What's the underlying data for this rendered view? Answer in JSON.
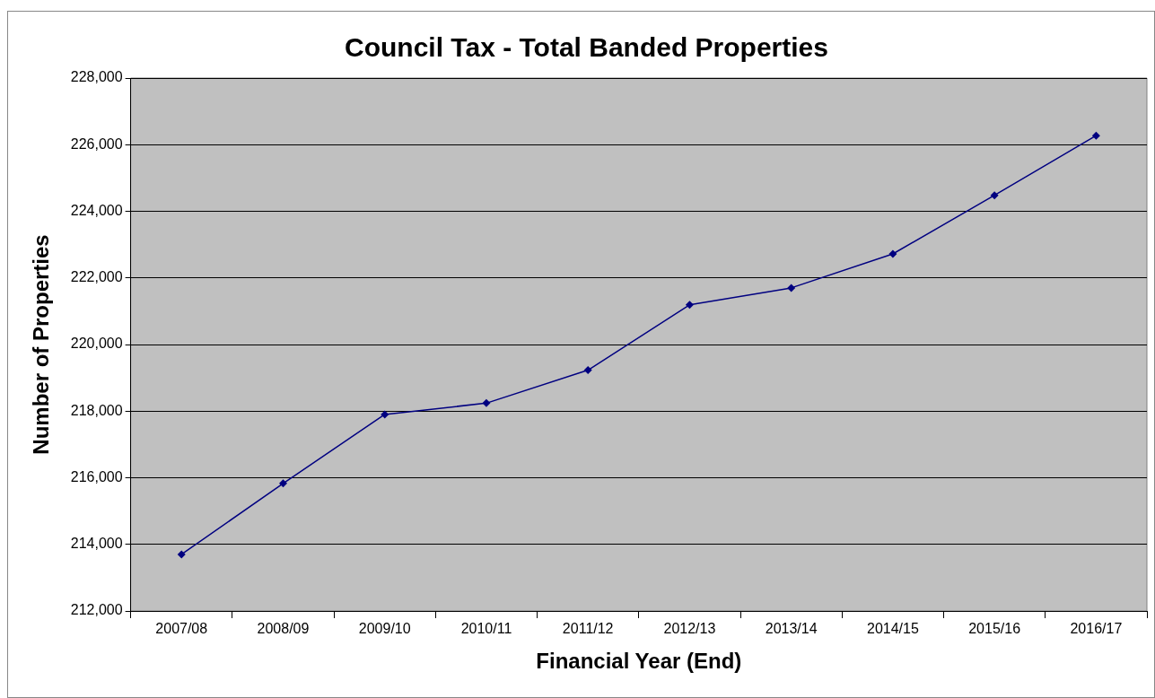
{
  "chart_data": {
    "type": "line",
    "title": "Council Tax - Total Banded Properties",
    "xlabel": "Financial Year (End)",
    "ylabel": "Number of Properties",
    "categories": [
      "2007/08",
      "2008/09",
      "2009/10",
      "2010/11",
      "2011/12",
      "2012/13",
      "2013/14",
      "2014/15",
      "2015/16",
      "2016/17"
    ],
    "series": [
      {
        "color": "#000080",
        "values": [
          213700,
          215830,
          217900,
          218240,
          219230,
          221190,
          221700,
          222720,
          224480,
          226270
        ]
      }
    ],
    "ylim": [
      212000,
      228000
    ],
    "yticks": [
      {
        "value": 212000,
        "label": "212,000"
      },
      {
        "value": 214000,
        "label": "214,000"
      },
      {
        "value": 216000,
        "label": "216,000"
      },
      {
        "value": 218000,
        "label": "218,000"
      },
      {
        "value": 220000,
        "label": "220,000"
      },
      {
        "value": 222000,
        "label": "222,000"
      },
      {
        "value": 224000,
        "label": "224,000"
      },
      {
        "value": 226000,
        "label": "226,000"
      },
      {
        "value": 228000,
        "label": "228,000"
      }
    ],
    "grid": "y",
    "legend": false,
    "marker": "diamond",
    "line_style": "solid"
  }
}
